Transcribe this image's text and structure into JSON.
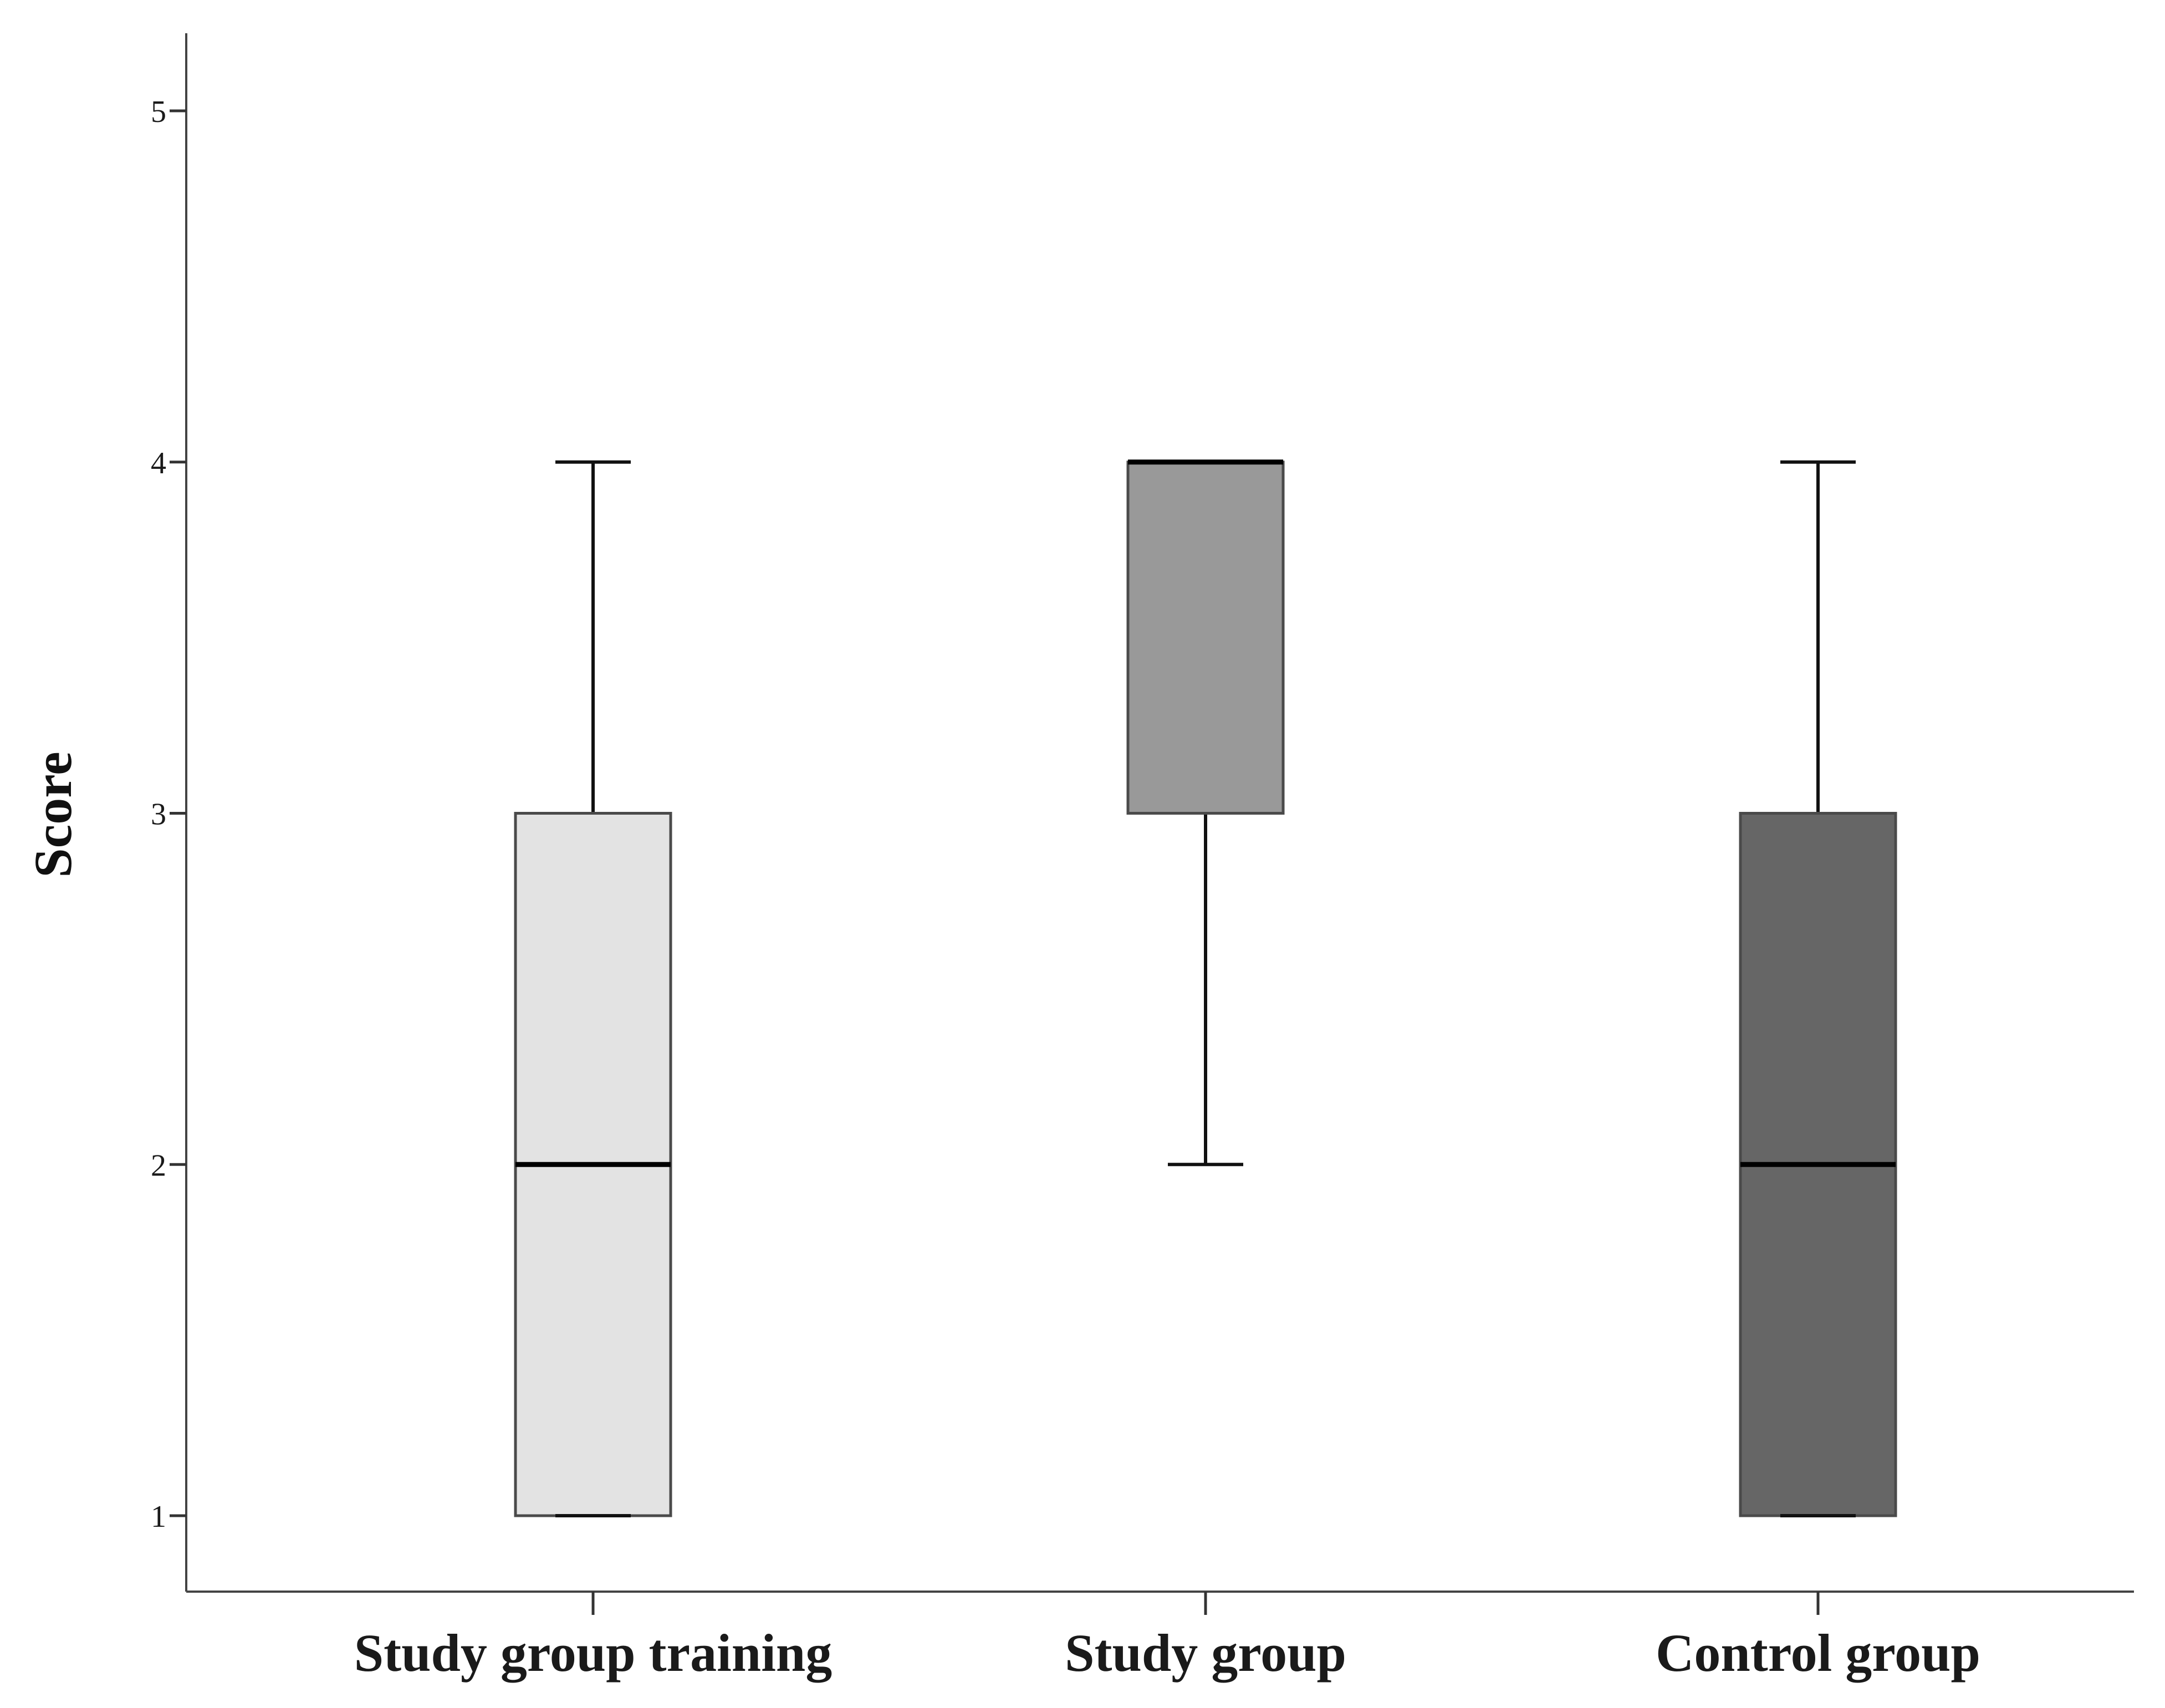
{
  "chart_data": {
    "type": "boxplot",
    "title": "",
    "xlabel": "",
    "ylabel": "Score",
    "ylim": [
      0.78,
      5.22
    ],
    "yticks": [
      1,
      2,
      3,
      4,
      5
    ],
    "grid": false,
    "categories": [
      "Study group training",
      "Study group",
      "Control group"
    ],
    "boxes": [
      {
        "category": "Study group training",
        "whisker_low": 1,
        "q1": 1,
        "median": 2,
        "q3": 3,
        "whisker_high": 4,
        "color": "#e3e3e3"
      },
      {
        "category": "Study group",
        "whisker_low": 2,
        "q1": 3,
        "median": 4,
        "q3": 4,
        "whisker_high": 4,
        "color": "#999999"
      },
      {
        "category": "Control group",
        "whisker_low": 1,
        "q1": 1,
        "median": 2,
        "q3": 3,
        "whisker_high": 4,
        "color": "#666666"
      }
    ]
  }
}
